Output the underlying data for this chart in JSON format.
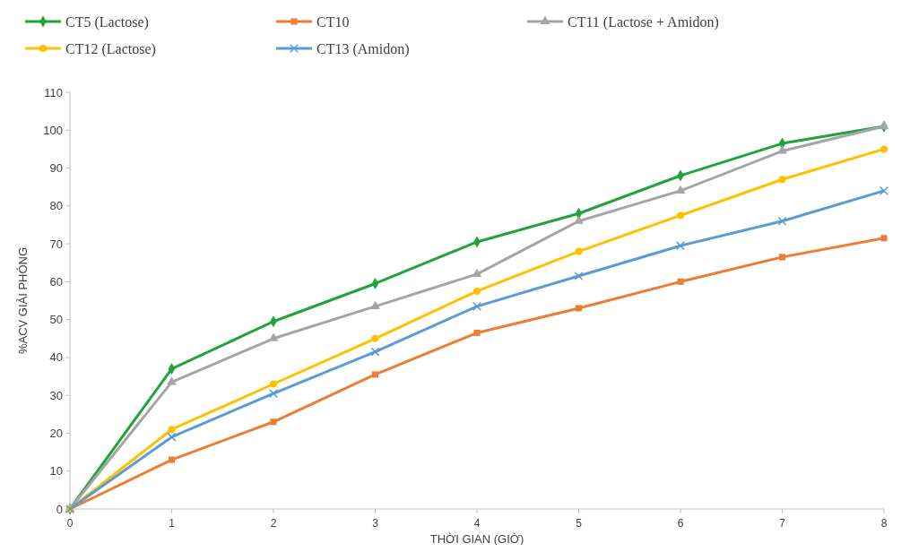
{
  "chart_data": {
    "type": "line",
    "xlabel": "THỜI GIAN (GIỜ)",
    "ylabel": "%ACV GIẢI PHÓNG",
    "x": [
      0,
      1,
      2,
      3,
      4,
      5,
      6,
      7,
      8
    ],
    "xlim": [
      0,
      8
    ],
    "xticks": [
      0,
      1,
      2,
      3,
      4,
      5,
      6,
      7,
      8
    ],
    "ylim": [
      0,
      110
    ],
    "yticks": [
      0,
      10,
      20,
      30,
      40,
      50,
      60,
      70,
      80,
      90,
      100,
      110
    ],
    "grid": false,
    "legend": "top",
    "line_style": "solid",
    "series": [
      {
        "name": "CT5 (Lactose)",
        "color": "#21a33b",
        "marker": "diamond",
        "values": [
          0,
          37,
          49.5,
          59.5,
          70.5,
          78,
          88,
          96.5,
          101
        ]
      },
      {
        "name": "CT10",
        "color": "#ed7d31",
        "marker": "square",
        "values": [
          0,
          13,
          23,
          35.5,
          46.5,
          53,
          60,
          66.5,
          71.5
        ]
      },
      {
        "name": "CT11 (Lactose + Amidon)",
        "color": "#a5a5a5",
        "marker": "triangle",
        "values": [
          0,
          33.5,
          45,
          53.5,
          62,
          76,
          84,
          94.5,
          101
        ]
      },
      {
        "name": "CT12 (Lactose)",
        "color": "#ffc000",
        "marker": "circle",
        "values": [
          0,
          21,
          33,
          45,
          57.5,
          68,
          77.5,
          87,
          95
        ]
      },
      {
        "name": "CT13 (Amidon)",
        "color": "#5b9bd5",
        "marker": "cross",
        "values": [
          0,
          19,
          30.5,
          41.5,
          53.5,
          61.5,
          69.5,
          76,
          84
        ]
      }
    ]
  }
}
